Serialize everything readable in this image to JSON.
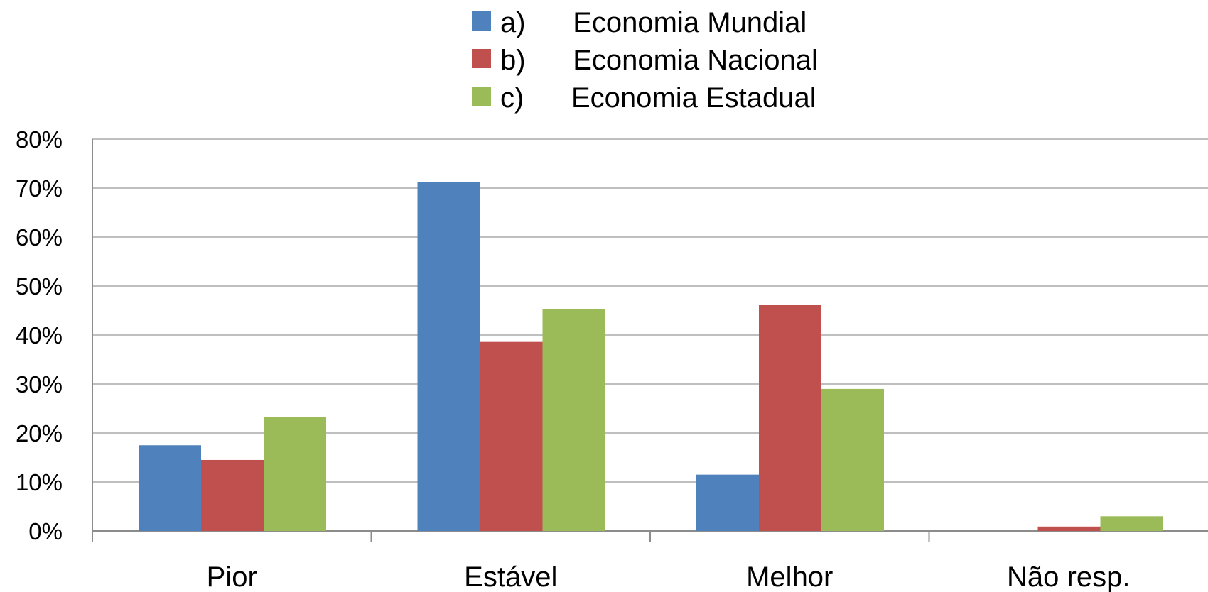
{
  "colors": {
    "series": [
      "#4F81BD",
      "#C0504D",
      "#9BBB59"
    ],
    "grid": "#bfbfbf",
    "axis": "#8c8c8c"
  },
  "chart_data": {
    "type": "bar",
    "categories": [
      "Pior",
      "Estável",
      "Melhor",
      "Não resp."
    ],
    "series": [
      {
        "name": "a)      Economia Mundial",
        "values": [
          17.5,
          71.3,
          11.5,
          0
        ]
      },
      {
        "name": "b)      Economia Nacional",
        "values": [
          14.5,
          38.6,
          46.2,
          0.9
        ]
      },
      {
        "name": "c)      Economia Estadual",
        "values": [
          23.3,
          45.3,
          29.0,
          3.0
        ]
      }
    ],
    "yticks": [
      "0%",
      "10%",
      "20%",
      "30%",
      "40%",
      "50%",
      "60%",
      "70%",
      "80%"
    ],
    "ylim": [
      0,
      80
    ],
    "grid": true,
    "legend_position": "top-center"
  }
}
